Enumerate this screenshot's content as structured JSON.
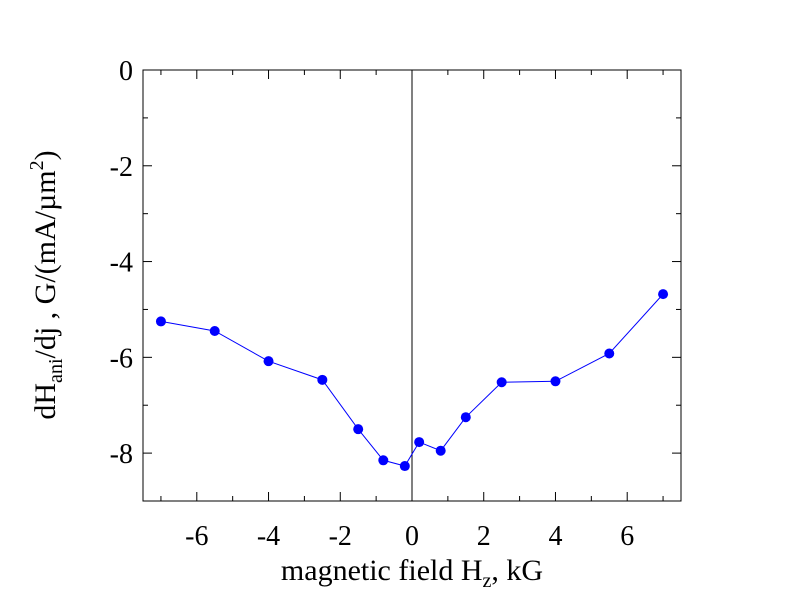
{
  "chart_data": {
    "type": "line",
    "xlabel_parts": {
      "main": "magnetic field H",
      "sub": "z",
      "rest": ", kG"
    },
    "ylabel_parts": {
      "a": "dH",
      "sub": "ani",
      "b": "/dj , G/(mA/µm",
      "sup": "2",
      "c": ")"
    },
    "xlim": [
      -7.5,
      7.5
    ],
    "ylim": [
      -9,
      0
    ],
    "xticks": [
      -6,
      -4,
      -2,
      0,
      2,
      4,
      6
    ],
    "yticks": [
      0,
      -2,
      -4,
      -6,
      -8
    ],
    "grid": false,
    "color": "#0000ff",
    "series": [
      {
        "x": [
          -7,
          -5.5,
          -4,
          -2.5,
          -1.5,
          -0.8,
          -0.2,
          0.2,
          0.8,
          1.5,
          2.5,
          4,
          5.5,
          7
        ],
        "y": [
          -5.25,
          -5.45,
          -6.08,
          -6.47,
          -7.5,
          -8.15,
          -8.27,
          -7.77,
          -7.95,
          -7.25,
          -6.52,
          -6.5,
          -5.92,
          -4.68
        ]
      }
    ]
  }
}
